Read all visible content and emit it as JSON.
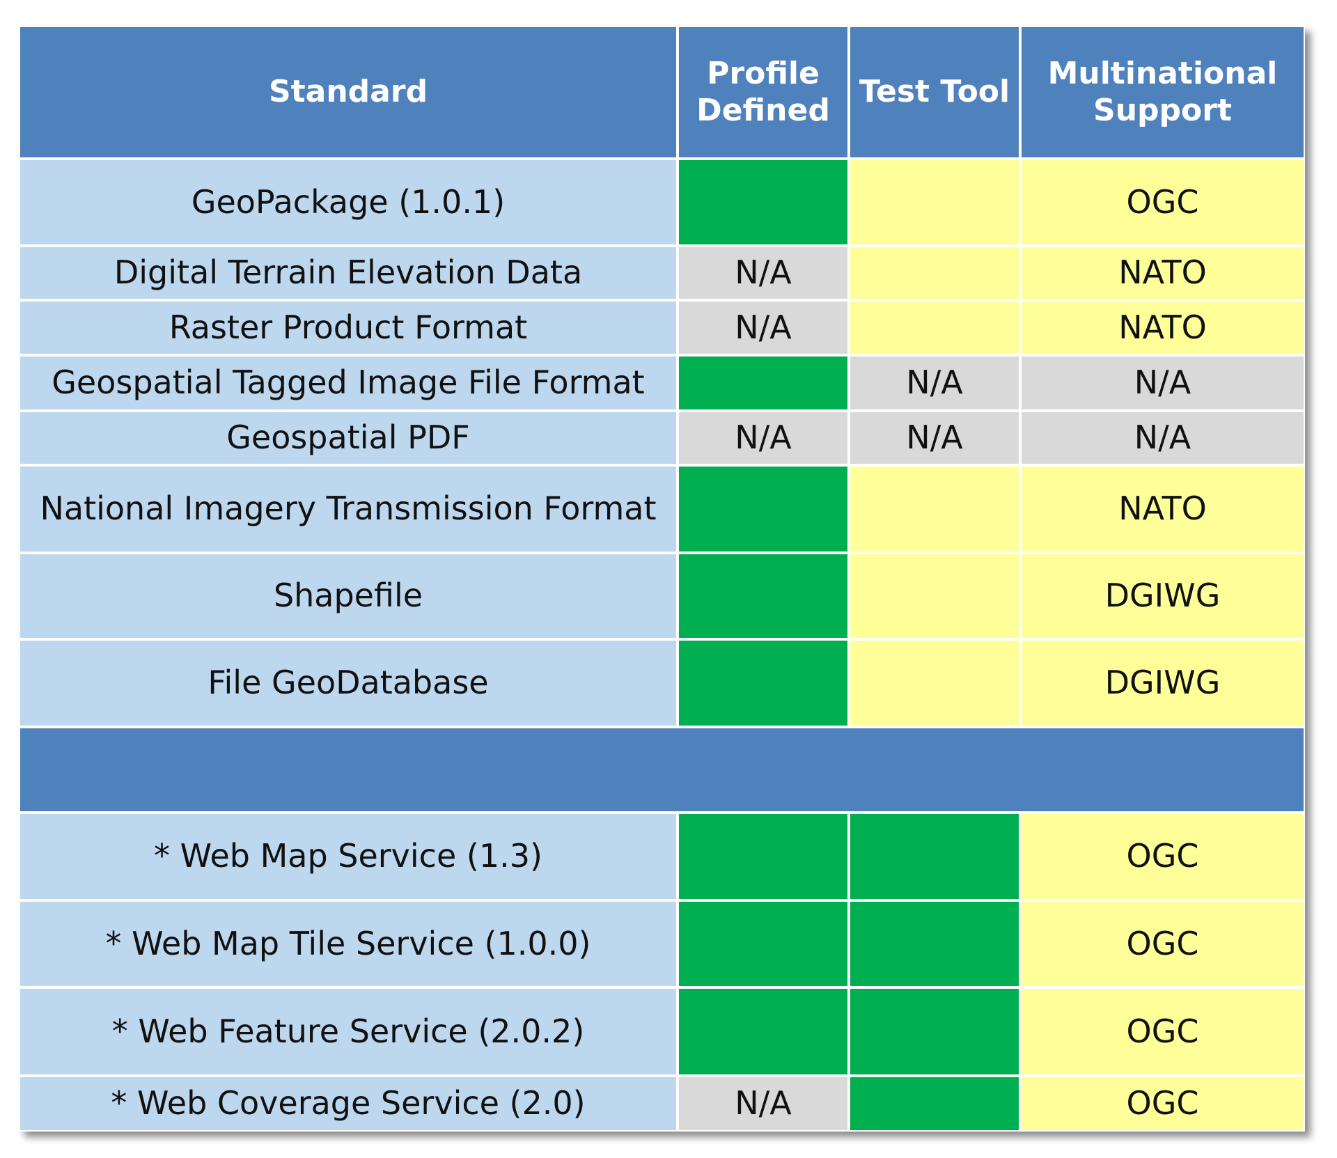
{
  "table": {
    "header": [
      "Standard",
      "Profile Defined",
      "Test Tool",
      "Multinational Support"
    ],
    "header_color": "#4f81bd",
    "first_column_color": "#bdd7ee",
    "sections": [
      {
        "rows": [
          {
            "standard": "GeoPackage (1.0.1)",
            "cells": [
              {
                "color": "#00b050"
              },
              {
                "color": "#ffff99"
              },
              {
                "text": "OGC",
                "color": "#ffff99"
              }
            ]
          },
          {
            "standard": "Digital Terrain Elevation Data",
            "cells": [
              {
                "text": "N/A",
                "color": "#d9d9d9"
              },
              {
                "color": "#ffff99"
              },
              {
                "text": "NATO",
                "color": "#ffff99"
              }
            ]
          },
          {
            "standard": "Raster Product Format",
            "cells": [
              {
                "text": "N/A",
                "color": "#d9d9d9"
              },
              {
                "color": "#ffff99"
              },
              {
                "text": "NATO",
                "color": "#ffff99"
              }
            ]
          },
          {
            "standard": "Geospatial Tagged Image File Format",
            "cells": [
              {
                "color": "#00b050"
              },
              {
                "text": "N/A",
                "color": "#d9d9d9"
              },
              {
                "text": "N/A",
                "color": "#d9d9d9"
              }
            ]
          },
          {
            "standard": "Geospatial PDF",
            "cells": [
              {
                "text": "N/A",
                "color": "#d9d9d9"
              },
              {
                "text": "N/A",
                "color": "#d9d9d9"
              },
              {
                "text": "N/A",
                "color": "#d9d9d9"
              }
            ]
          },
          {
            "standard": "National Imagery Transmission Format",
            "cells": [
              {
                "color": "#00b050"
              },
              {
                "color": "#ffff99"
              },
              {
                "text": "NATO",
                "color": "#ffff99"
              }
            ]
          },
          {
            "standard": "Shapefile",
            "cells": [
              {
                "color": "#00b050"
              },
              {
                "color": "#ffff99"
              },
              {
                "text": "DGIWG",
                "color": "#ffff99"
              }
            ]
          },
          {
            "standard": "File GeoDatabase",
            "cells": [
              {
                "color": "#00b050"
              },
              {
                "color": "#ffff99"
              },
              {
                "text": "DGIWG",
                "color": "#ffff99"
              }
            ]
          }
        ]
      },
      {
        "rows": [
          {
            "standard": "* Web Map Service (1.3)",
            "cells": [
              {
                "color": "#00b050"
              },
              {
                "color": "#00b050"
              },
              {
                "text": "OGC",
                "color": "#ffff99"
              }
            ]
          },
          {
            "standard": "* Web Map Tile Service (1.0.0)",
            "cells": [
              {
                "color": "#00b050"
              },
              {
                "color": "#00b050"
              },
              {
                "text": "OGC",
                "color": "#ffff99"
              }
            ]
          },
          {
            "standard": "* Web Feature Service (2.0.2)",
            "cells": [
              {
                "color": "#00b050"
              },
              {
                "color": "#00b050"
              },
              {
                "text": "OGC",
                "color": "#ffff99"
              }
            ]
          },
          {
            "standard": "* Web Coverage Service (2.0)",
            "cells": [
              {
                "text": "N/A",
                "color": "#d9d9d9"
              },
              {
                "color": "#00b050"
              },
              {
                "text": "OGC",
                "color": "#ffff99"
              }
            ]
          }
        ]
      }
    ]
  }
}
